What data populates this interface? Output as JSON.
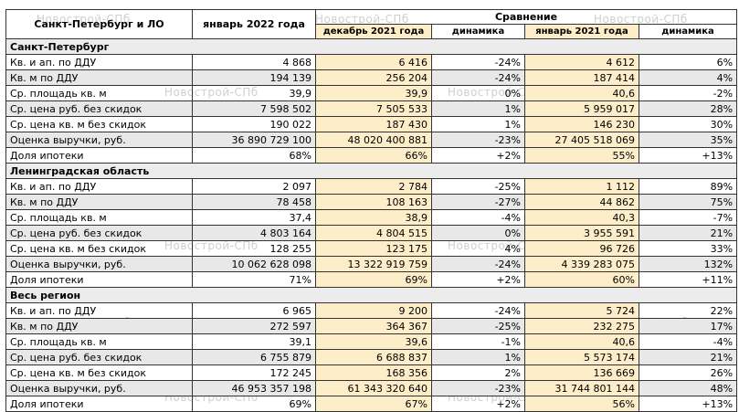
{
  "header": {
    "region_label": "Санкт-Петербург и ЛО",
    "current_period": "январь 2022 года",
    "comparison": "Сравнение",
    "prev_month": "декабрь 2021 года",
    "dynamics": "динамика",
    "prev_year": "январь 2021 года"
  },
  "watermark": "Новострой-СПб",
  "sections": [
    {
      "title": "Санкт-Петербург",
      "rows": [
        {
          "label": "Кв. и ап. по ДДУ",
          "cur": "4 868",
          "dec": "6 416",
          "dyn1": "-24%",
          "jan": "4 612",
          "dyn2": "6%"
        },
        {
          "label": "Кв. м по ДДУ",
          "cur": "194 139",
          "dec": "256 204",
          "dyn1": "-24%",
          "jan": "187 414",
          "dyn2": "4%"
        },
        {
          "label": "Ср. площадь кв. м",
          "cur": "39,9",
          "dec": "39,9",
          "dyn1": "0%",
          "jan": "40,6",
          "dyn2": "-2%"
        },
        {
          "label": "Ср. цена руб. без скидок",
          "cur": "7 598 502",
          "dec": "7 505 533",
          "dyn1": "1%",
          "jan": "5 959 017",
          "dyn2": "28%"
        },
        {
          "label": "Ср. цена кв. м без скидок",
          "cur": "190 022",
          "dec": "187 430",
          "dyn1": "1%",
          "jan": "146 230",
          "dyn2": "30%"
        },
        {
          "label": "Оценка выручки, руб.",
          "cur": "36 890 729 100",
          "dec": "48 020 400 881",
          "dyn1": "-23%",
          "jan": "27 405 518 069",
          "dyn2": "35%"
        },
        {
          "label": "Доля ипотеки",
          "cur": "68%",
          "dec": "66%",
          "dyn1": "+2%",
          "jan": "55%",
          "dyn2": "+13%"
        }
      ]
    },
    {
      "title": "Ленинградская область",
      "rows": [
        {
          "label": "Кв. и ап. по ДДУ",
          "cur": "2 097",
          "dec": "2 784",
          "dyn1": "-25%",
          "jan": "1 112",
          "dyn2": "89%"
        },
        {
          "label": "Кв. м по ДДУ",
          "cur": "78 458",
          "dec": "108 163",
          "dyn1": "-27%",
          "jan": "44 862",
          "dyn2": "75%"
        },
        {
          "label": "Ср. площадь кв. м",
          "cur": "37,4",
          "dec": "38,9",
          "dyn1": "-4%",
          "jan": "40,3",
          "dyn2": "-7%"
        },
        {
          "label": "Ср. цена руб. без скидок",
          "cur": "4 803 164",
          "dec": "4 804 515",
          "dyn1": "0%",
          "jan": "3 955 591",
          "dyn2": "21%"
        },
        {
          "label": "Ср. цена кв. м без скидок",
          "cur": "128 255",
          "dec": "123 175",
          "dyn1": "4%",
          "jan": "96 726",
          "dyn2": "33%"
        },
        {
          "label": "Оценка выручки, руб.",
          "cur": "10 062 628 098",
          "dec": "13 322 919 759",
          "dyn1": "-24%",
          "jan": "4 339 283 075",
          "dyn2": "132%"
        },
        {
          "label": "Доля ипотеки",
          "cur": "71%",
          "dec": "69%",
          "dyn1": "+2%",
          "jan": "60%",
          "dyn2": "+11%"
        }
      ]
    },
    {
      "title": "Весь регион",
      "rows": [
        {
          "label": "Кв. и ап. по ДДУ",
          "cur": "6 965",
          "dec": "9 200",
          "dyn1": "-24%",
          "jan": "5 724",
          "dyn2": "22%"
        },
        {
          "label": "Кв. м по ДДУ",
          "cur": "272 597",
          "dec": "364 367",
          "dyn1": "-25%",
          "jan": "232 275",
          "dyn2": "17%"
        },
        {
          "label": "Ср. площадь кв. м",
          "cur": "39,1",
          "dec": "39,6",
          "dyn1": "-1%",
          "jan": "40,6",
          "dyn2": "-4%"
        },
        {
          "label": "Ср. цена руб. без скидок",
          "cur": "6 755 879",
          "dec": "6 688 837",
          "dyn1": "1%",
          "jan": "5 573 174",
          "dyn2": "21%"
        },
        {
          "label": "Ср. цена кв. м без скидок",
          "cur": "172 245",
          "dec": "168 356",
          "dyn1": "2%",
          "jan": "136 669",
          "dyn2": "26%"
        },
        {
          "label": "Оценка выручки, руб.",
          "cur": "46 953 357 198",
          "dec": "61 343 320 640",
          "dyn1": "-23%",
          "jan": "31 744 801 144",
          "dyn2": "48%"
        },
        {
          "label": "Доля ипотеки",
          "cur": "69%",
          "dec": "67%",
          "dyn1": "+2%",
          "jan": "56%",
          "dyn2": "+13%"
        }
      ]
    }
  ]
}
